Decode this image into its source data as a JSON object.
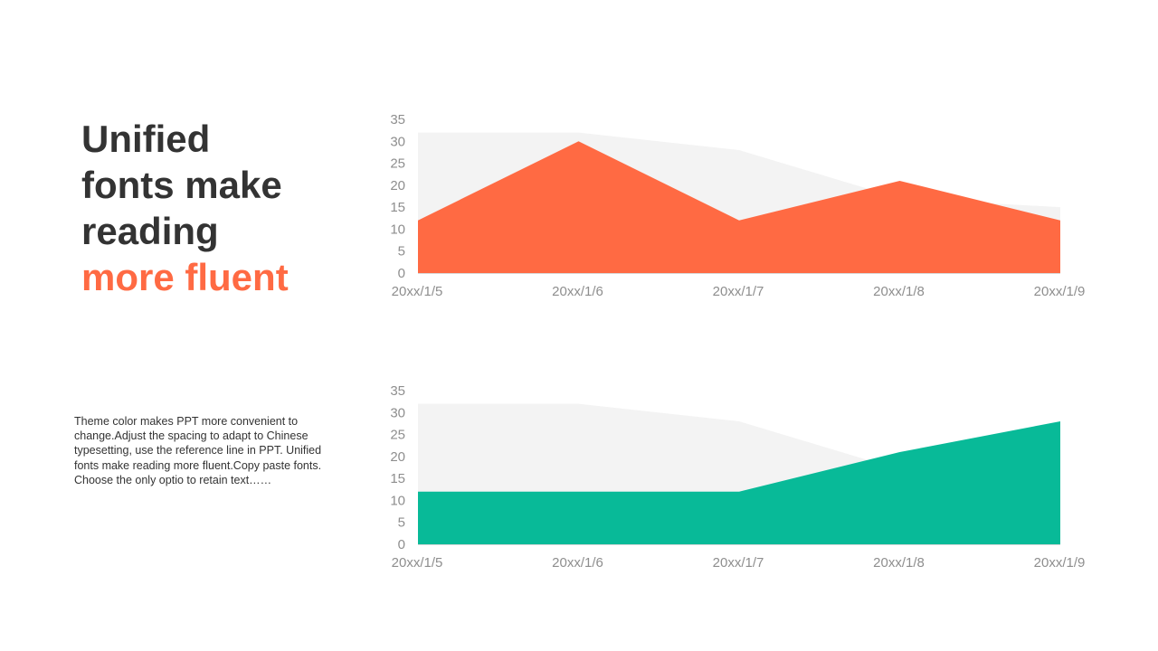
{
  "headline": {
    "line1": "Unified",
    "line2": "fonts make",
    "line3": "reading",
    "accent_line": "more fluent"
  },
  "body_text": "Theme  color makes PPT more convenient to change.Adjust the spacing to adapt to Chinese typesetting, use the reference line in PPT. Unified fonts make reading more fluent.Copy paste fonts. Choose the only optio to retain text……",
  "colors": {
    "accent": "#FF6A43",
    "teal": "#08BA98",
    "background_area": "#F3F3F3",
    "headline": "#333333"
  },
  "chart_data": [
    {
      "type": "area",
      "categories": [
        "20xx/1/5",
        "20xx/1/6",
        "20xx/1/7",
        "20xx/1/8",
        "20xx/1/9"
      ],
      "series": [
        {
          "values": [
            32,
            32,
            28,
            17,
            15
          ],
          "color": "#F3F3F3"
        },
        {
          "values": [
            12,
            30,
            12,
            21,
            12
          ],
          "color": "#FF6A43"
        }
      ],
      "ylim": [
        0,
        35
      ],
      "yticks": [
        0,
        5,
        10,
        15,
        20,
        25,
        30,
        35
      ],
      "grid": false,
      "legend": "none"
    },
    {
      "type": "area",
      "categories": [
        "20xx/1/5",
        "20xx/1/6",
        "20xx/1/7",
        "20xx/1/8",
        "20xx/1/9"
      ],
      "series": [
        {
          "values": [
            32,
            32,
            28,
            17,
            15
          ],
          "color": "#F3F3F3"
        },
        {
          "values": [
            12,
            12,
            12,
            21,
            28
          ],
          "color": "#08BA98"
        }
      ],
      "ylim": [
        0,
        35
      ],
      "yticks": [
        0,
        5,
        10,
        15,
        20,
        25,
        30,
        35
      ],
      "grid": false,
      "legend": "none"
    }
  ]
}
